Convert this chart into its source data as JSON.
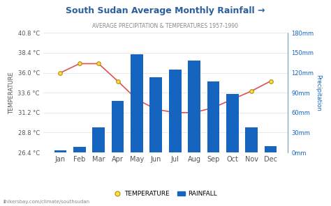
{
  "title": "South Sudan Average Monthly Rainfall →",
  "subtitle": "AVERAGE PRECIPITATION & TEMPERATURES 1957-1990",
  "months": [
    "Jan",
    "Feb",
    "Mar",
    "Apr",
    "May",
    "Jun",
    "Jul",
    "Aug",
    "Sep",
    "Oct",
    "Nov",
    "Dec"
  ],
  "rainfall_mm": [
    3,
    8,
    38,
    78,
    148,
    113,
    125,
    138,
    107,
    88,
    38,
    10
  ],
  "temperature_c": [
    36.0,
    37.1,
    37.1,
    35.0,
    32.8,
    31.6,
    31.2,
    31.2,
    31.8,
    32.8,
    33.8,
    35.0
  ],
  "temp_ylim": [
    26.4,
    40.8
  ],
  "rain_ylim": [
    0,
    180
  ],
  "temp_yticks": [
    26.4,
    28.8,
    31.2,
    33.6,
    36.0,
    38.4,
    40.8
  ],
  "rain_yticks": [
    0,
    30,
    60,
    90,
    120,
    150,
    180
  ],
  "rain_yticklabels": [
    "0mm",
    "30mm",
    "60mm",
    "90mm",
    "120mm",
    "150mm",
    "180mm"
  ],
  "bar_color": "#1565c0",
  "line_color": "#e05050",
  "marker_face": "#f5e642",
  "marker_edge": "#b8860b",
  "background_color": "#ffffff",
  "title_color": "#2c5f9e",
  "subtitle_color": "#888888",
  "axis_label_color": "#555555",
  "ylabel_left": "TEMPERATURE",
  "ylabel_right": "Precipitation",
  "footer": "ℹhikersbay.com/climate/southsudan",
  "legend_temp": "TEMPERATURE",
  "legend_rain": "RAINFALL",
  "grid_color": "#e0e0e0",
  "tick_label_color": "#555555",
  "right_axis_color": "#1565c0"
}
